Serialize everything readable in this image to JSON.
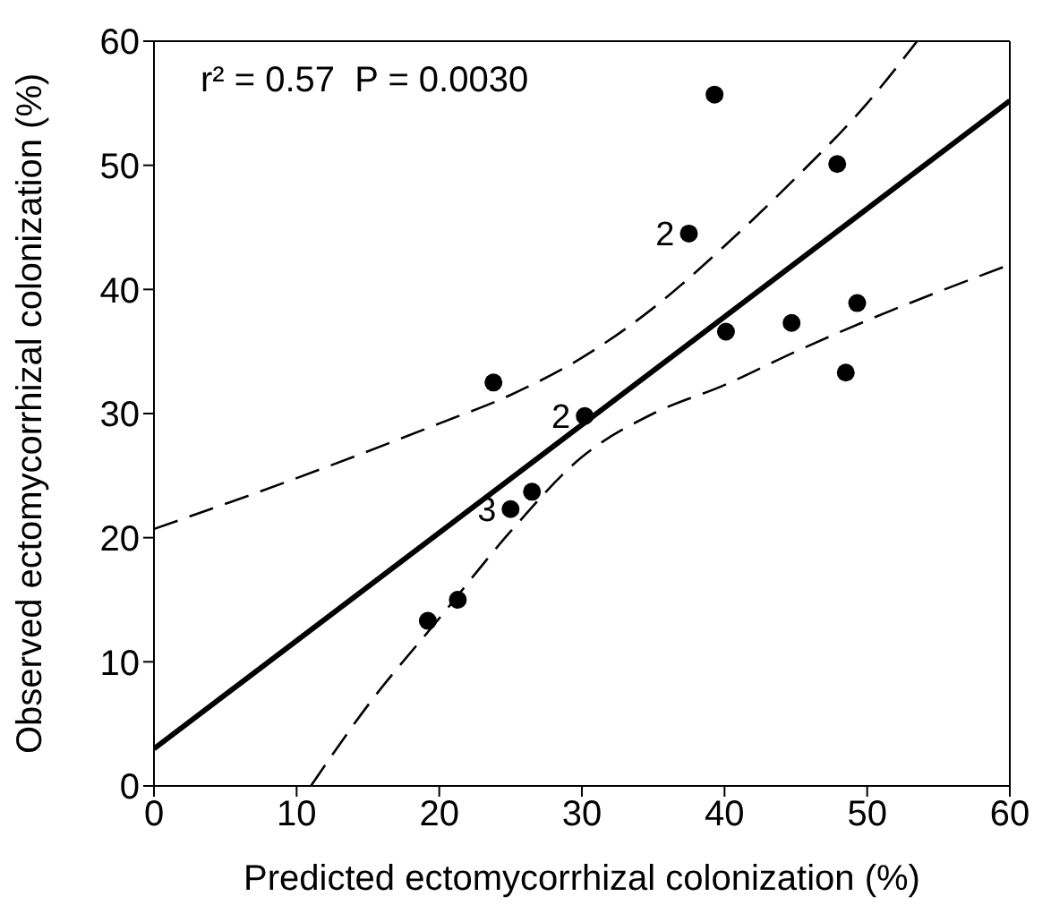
{
  "chart_data": {
    "type": "scatter",
    "xlabel": "Predicted ectomycorrhizal colonization (%)",
    "ylabel": "Observed ectomycorrhizal colonization (%)",
    "xlim": [
      0,
      60
    ],
    "ylim": [
      0,
      60
    ],
    "xticks": [
      0,
      10,
      20,
      30,
      40,
      50,
      60
    ],
    "yticks": [
      0,
      10,
      20,
      30,
      40,
      50,
      60
    ],
    "grid": false,
    "legend": false,
    "series": [
      {
        "type": "scatter",
        "color": "#000000",
        "marker": "circle",
        "x": [
          19.2,
          21.3,
          25.0,
          26.5,
          23.8,
          30.2,
          37.5,
          39.3,
          40.1,
          44.7,
          47.9,
          48.5,
          49.3
        ],
        "values": [
          13.3,
          15.0,
          22.3,
          23.7,
          32.5,
          29.8,
          44.5,
          55.7,
          36.6,
          37.3,
          50.1,
          33.3,
          38.9
        ]
      },
      {
        "type": "line",
        "color": "#000000",
        "line_style": "solid",
        "marker": "none",
        "x": [
          0,
          60
        ],
        "values": [
          3.0,
          55.2
        ]
      },
      {
        "type": "line",
        "color": "#000000",
        "line_style": "dashed",
        "marker": "none",
        "x": [
          0,
          10,
          20,
          25,
          30,
          35,
          40,
          45,
          50,
          53.5
        ],
        "values": [
          20.7,
          24.8,
          29.2,
          31.5,
          34.5,
          38.5,
          43.5,
          49.0,
          55.0,
          60.0
        ]
      },
      {
        "type": "line",
        "color": "#000000",
        "line_style": "dashed",
        "marker": "none",
        "x": [
          11,
          15,
          20,
          25,
          30,
          35,
          40,
          45,
          50,
          60
        ],
        "values": [
          0,
          6.5,
          13.5,
          20.5,
          26.5,
          30.0,
          32.3,
          35.0,
          37.5,
          42.0
        ]
      }
    ],
    "annotations": [
      "r² = 0.57  P = 0.0030",
      {
        "text": "2",
        "x": 37.5,
        "y": 44.5
      },
      {
        "text": "2",
        "x": 30.2,
        "y": 29.8
      },
      {
        "text": "3",
        "x": 25.0,
        "y": 22.3
      }
    ]
  }
}
